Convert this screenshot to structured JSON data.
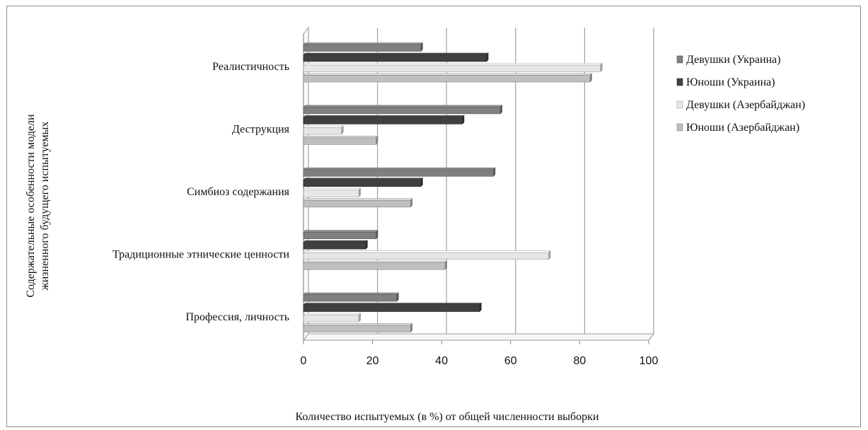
{
  "chart_data": {
    "type": "bar",
    "orientation": "horizontal",
    "title": "",
    "xlabel": "Количество испытуемых  (в %) от общей численности выборки",
    "ylabel_lines": [
      "Содержательные особенности модели",
      "жизненного будущего испытуемых"
    ],
    "xlim": [
      0,
      100
    ],
    "xticks": [
      "0",
      "20",
      "40",
      "60",
      "80",
      "100"
    ],
    "grid": true,
    "legend_position": "right",
    "categories": [
      "Реалистичность",
      "Деструкция",
      "Симбиоз содержания",
      "Традиционные этнические ценности",
      "Профессия, личность"
    ],
    "series": [
      {
        "name": "Девушки (Украина)",
        "color": "#808080",
        "values": [
          34,
          57,
          55,
          21,
          27
        ]
      },
      {
        "name": "Юноши (Украина)",
        "color": "#404040",
        "values": [
          53,
          46,
          34,
          18,
          51
        ]
      },
      {
        "name": "Девушки (Азербайджан)",
        "color": "#e6e6e6",
        "values": [
          86,
          11,
          16,
          71,
          16
        ]
      },
      {
        "name": "Юноши (Азербайджан)",
        "color": "#bfbfbf",
        "values": [
          83,
          21,
          31,
          41,
          31
        ]
      }
    ]
  }
}
